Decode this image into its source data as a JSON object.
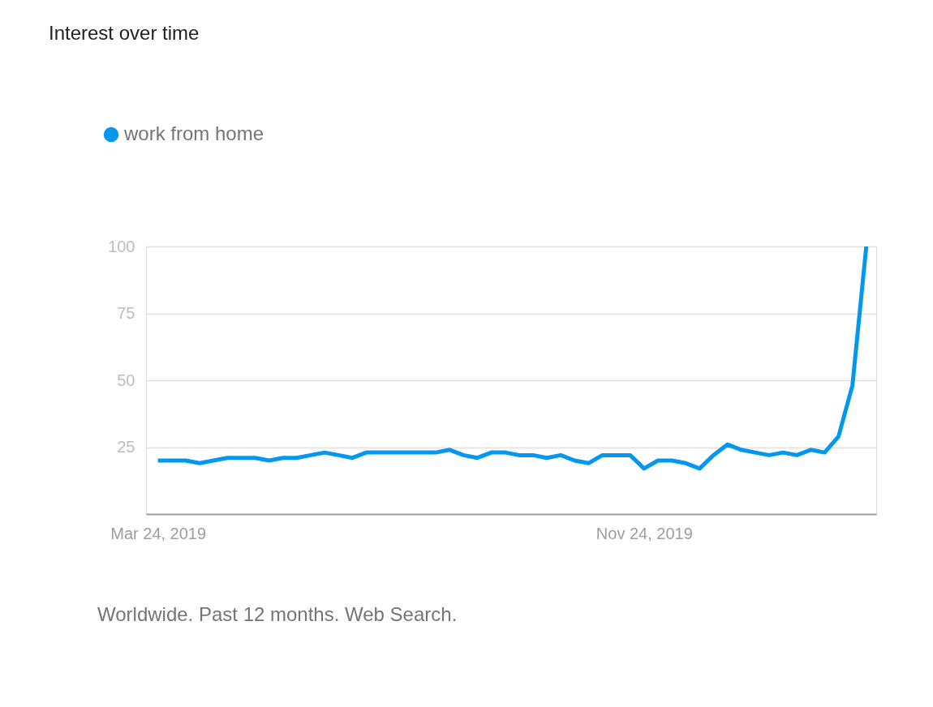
{
  "chart_data": {
    "type": "line",
    "title": "Interest over time",
    "x": [
      "2019-03-24",
      "2019-03-31",
      "2019-04-07",
      "2019-04-14",
      "2019-04-21",
      "2019-04-28",
      "2019-05-05",
      "2019-05-12",
      "2019-05-19",
      "2019-05-26",
      "2019-06-02",
      "2019-06-09",
      "2019-06-16",
      "2019-06-23",
      "2019-06-30",
      "2019-07-07",
      "2019-07-14",
      "2019-07-21",
      "2019-07-28",
      "2019-08-04",
      "2019-08-11",
      "2019-08-18",
      "2019-08-25",
      "2019-09-01",
      "2019-09-08",
      "2019-09-15",
      "2019-09-22",
      "2019-09-29",
      "2019-10-06",
      "2019-10-13",
      "2019-10-20",
      "2019-10-27",
      "2019-11-03",
      "2019-11-10",
      "2019-11-17",
      "2019-11-24",
      "2019-12-01",
      "2019-12-08",
      "2019-12-15",
      "2019-12-22",
      "2019-12-29",
      "2020-01-05",
      "2020-01-12",
      "2020-01-19",
      "2020-01-26",
      "2020-02-02",
      "2020-02-09",
      "2020-02-16",
      "2020-02-23",
      "2020-03-01",
      "2020-03-08",
      "2020-03-15"
    ],
    "series": [
      {
        "name": "work from home",
        "color": "#0497ef",
        "values": [
          20,
          20,
          20,
          19,
          20,
          21,
          21,
          21,
          20,
          21,
          21,
          22,
          23,
          22,
          21,
          23,
          23,
          23,
          23,
          23,
          23,
          24,
          22,
          21,
          23,
          23,
          22,
          22,
          21,
          22,
          20,
          19,
          22,
          22,
          22,
          17,
          20,
          20,
          19,
          17,
          22,
          26,
          24,
          23,
          22,
          23,
          22,
          24,
          23,
          29,
          48,
          100
        ]
      }
    ],
    "xlim": [
      "2019-03-18",
      "2020-03-20"
    ],
    "xticks": [
      {
        "value": "2019-03-24",
        "label": "Mar 24, 2019"
      },
      {
        "value": "2019-11-24",
        "label": "Nov 24, 2019"
      }
    ],
    "ylim": [
      0,
      100
    ],
    "yticks": [
      25,
      50,
      75,
      100
    ],
    "grid": "y",
    "legend": "top left",
    "marker": "none",
    "line_style": "solid",
    "annotations": [
      "Worldwide. Past 12 months. Web Search."
    ]
  }
}
